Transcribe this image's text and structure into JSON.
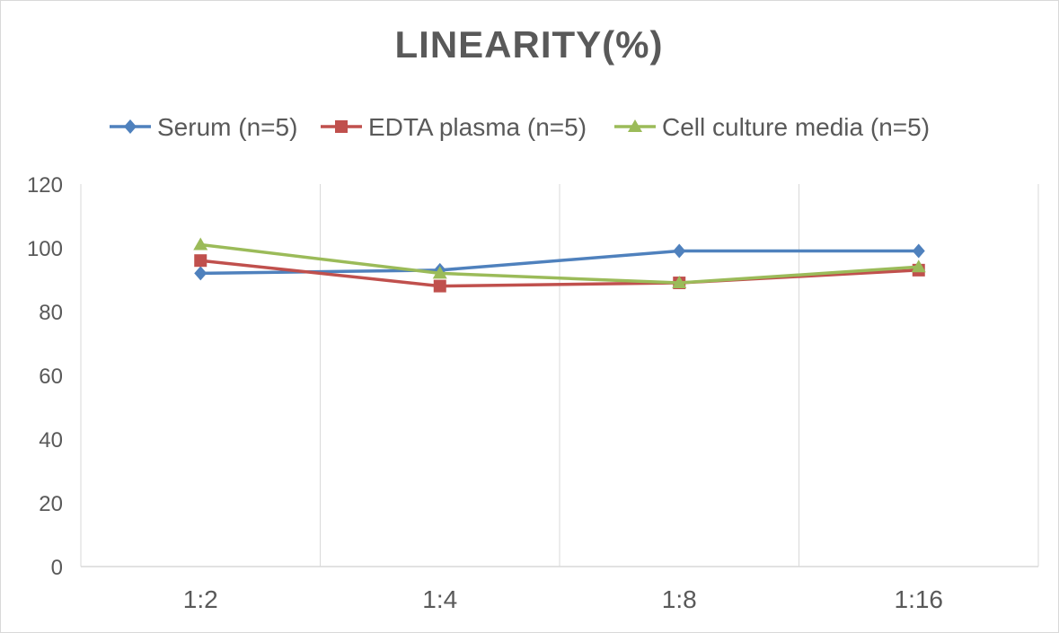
{
  "chart_data": {
    "type": "line",
    "title": "LINEARITY(%)",
    "xlabel": "",
    "ylabel": "",
    "categories": [
      "1:2",
      "1:4",
      "1:8",
      "1:16"
    ],
    "ylim": [
      0,
      120
    ],
    "yticks": [
      0,
      20,
      40,
      60,
      80,
      100,
      120
    ],
    "grid": "vertical",
    "legend_position": "top",
    "series": [
      {
        "name": "Serum (n=5)",
        "values": [
          92,
          93,
          99,
          99
        ],
        "color": "#4f81bd",
        "marker": "diamond"
      },
      {
        "name": "EDTA plasma (n=5)",
        "values": [
          96,
          88,
          89,
          93
        ],
        "color": "#c0504d",
        "marker": "square"
      },
      {
        "name": "Cell culture media (n=5)",
        "values": [
          101,
          92,
          89,
          94
        ],
        "color": "#9bbb59",
        "marker": "triangle"
      }
    ]
  }
}
